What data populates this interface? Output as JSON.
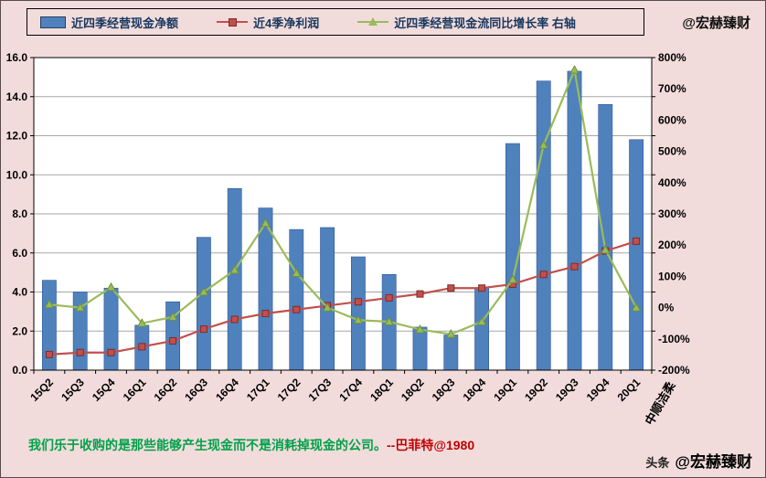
{
  "header": {
    "legend": [
      {
        "label": "近四季经营现金净额",
        "type": "bar",
        "color": "#4F81BD"
      },
      {
        "label": "近4季净利润",
        "type": "line-square",
        "color": "#C0504D"
      },
      {
        "label": "近四季经营现金流同比增长率 右轴",
        "type": "line-triangle",
        "color": "#9BBB59"
      }
    ],
    "watermark": "@宏赫臻财"
  },
  "chart_data": {
    "type": "combo",
    "title": "",
    "xlabel": "",
    "ylabel": "",
    "grid": true,
    "legend_position": "top",
    "plot_bg": "#FFFFFF",
    "grid_color": "#A6A6A6",
    "categories": [
      "15Q2",
      "15Q3",
      "15Q4",
      "16Q1",
      "16Q2",
      "16Q3",
      "16Q4",
      "17Q1",
      "17Q2",
      "17Q3",
      "17Q4",
      "18Q1",
      "18Q2",
      "18Q3",
      "18Q4",
      "19Q1",
      "19Q2",
      "19Q3",
      "19Q4",
      "20Q1"
    ],
    "company_label": "中顺洁柔",
    "series": [
      {
        "name": "近四季经营现金净额",
        "type": "bar",
        "axis": "left",
        "color": "#4F81BD",
        "values": [
          4.6,
          4.0,
          4.2,
          2.3,
          3.5,
          6.8,
          9.3,
          8.3,
          7.2,
          7.3,
          5.8,
          4.9,
          2.2,
          1.8,
          4.2,
          11.6,
          14.8,
          15.3,
          13.6,
          11.8
        ]
      },
      {
        "name": "近4季净利润",
        "type": "line",
        "marker": "square",
        "axis": "left",
        "color": "#C0504D",
        "values": [
          0.8,
          0.9,
          0.9,
          1.2,
          1.5,
          2.1,
          2.6,
          2.9,
          3.1,
          3.3,
          3.5,
          3.7,
          3.9,
          4.2,
          4.2,
          4.4,
          4.9,
          5.3,
          6.1,
          6.6
        ]
      },
      {
        "name": "近四季经营现金流同比增长率",
        "type": "line",
        "marker": "triangle",
        "axis": "right",
        "color": "#9BBB59",
        "values": [
          10,
          0,
          65,
          -50,
          -30,
          50,
          120,
          270,
          110,
          0,
          -40,
          -45,
          -70,
          -85,
          -45,
          90,
          520,
          760,
          185,
          0
        ]
      }
    ],
    "left_axis": {
      "min": 0,
      "max": 16,
      "step": 2,
      "tick_labels": [
        "0.0",
        "2.0",
        "4.0",
        "6.0",
        "8.0",
        "10.0",
        "12.0",
        "14.0",
        "16.0"
      ]
    },
    "right_axis": {
      "min": -200,
      "max": 800,
      "step": 100,
      "tick_labels": [
        "-200%",
        "-100%",
        "0%",
        "100%",
        "200%",
        "300%",
        "400%",
        "500%",
        "600%",
        "700%",
        "800%"
      ]
    }
  },
  "footer": {
    "quote": "我们乐于收购的是那些能够产生现金而不是消耗掉现金的公司。",
    "attribution": "--巴菲特@1980",
    "brand_prefix": "头条",
    "brand": "@宏赫臻财"
  }
}
